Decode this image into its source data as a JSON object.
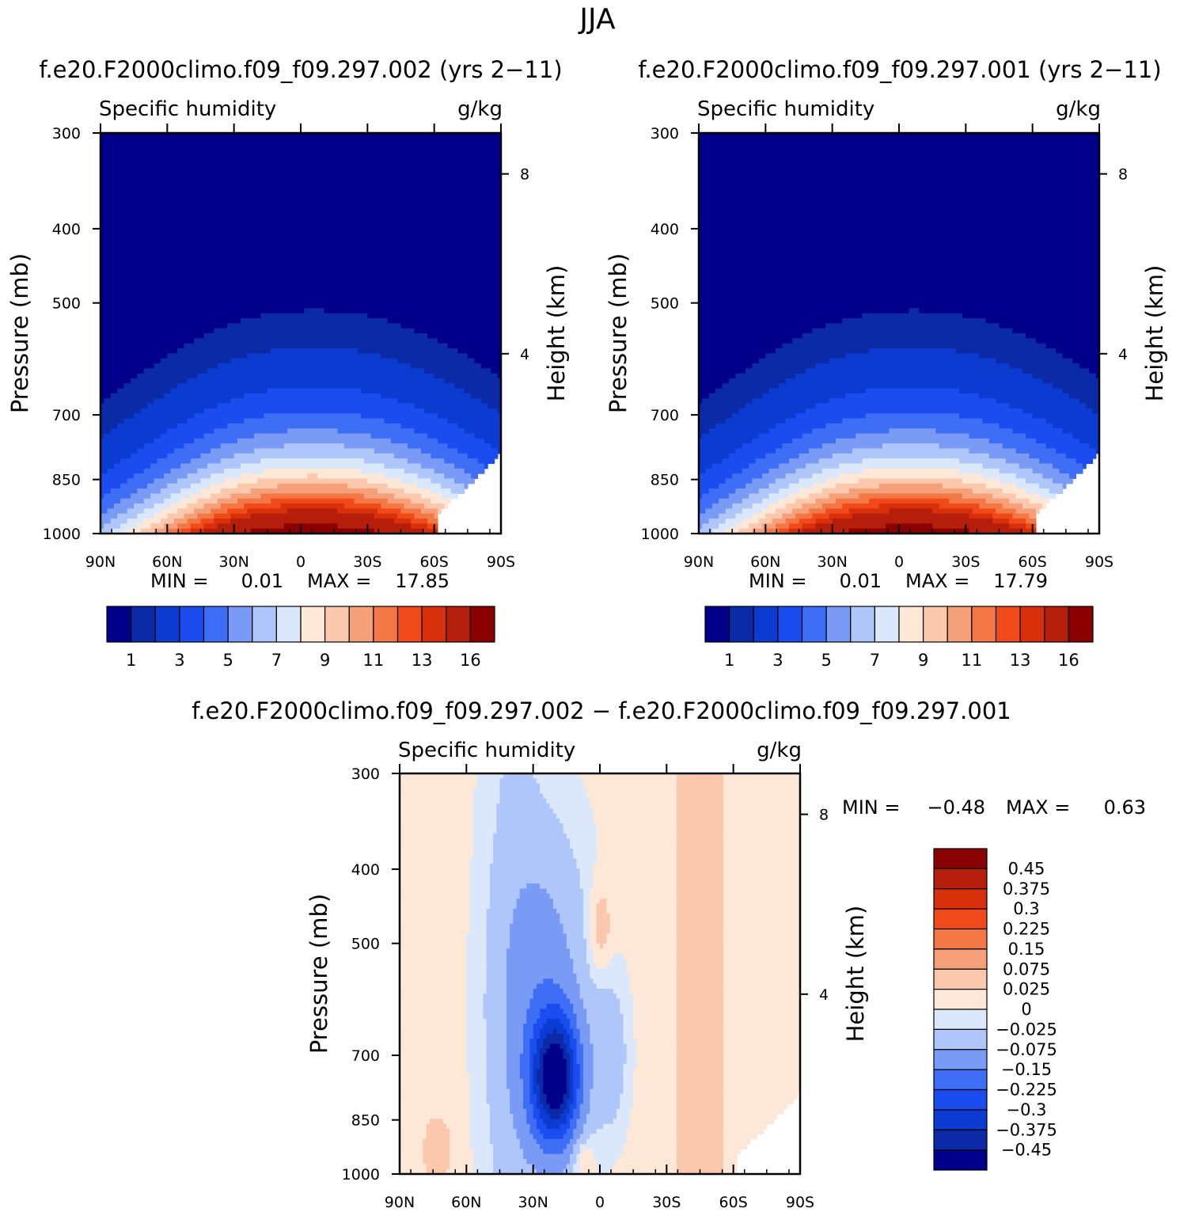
{
  "chart_data": {
    "type": "heatmap",
    "title": "JJA",
    "panels": [
      {
        "id": "p1",
        "case_title": "f.e20.F2000climo.f09_f09.297.002 (yrs 2-11)",
        "variable": "Specific humidity",
        "units": "g/kg",
        "ylabel": "Pressure (mb)",
        "y2label": "Height (km)",
        "xticks": [
          "90N",
          "60N",
          "30N",
          "0",
          "30S",
          "60S",
          "90S"
        ],
        "yticks": [
          "300",
          "400",
          "500",
          "700",
          "850",
          "1000"
        ],
        "y2ticks": [
          "8",
          "4"
        ],
        "min_label": "MIN =",
        "min_value": "0.01",
        "max_label": "MAX =",
        "max_value": "17.85",
        "levels": [
          "1",
          "3",
          "5",
          "7",
          "9",
          "11",
          "13",
          "16"
        ],
        "peak_lat": 8,
        "peak_value": 17.85
      },
      {
        "id": "p2",
        "case_title": "f.e20.F2000climo.f09_f09.297.001 (yrs 2-11)",
        "variable": "Specific humidity",
        "units": "g/kg",
        "ylabel": "Pressure (mb)",
        "y2label": "Height (km)",
        "xticks": [
          "90N",
          "60N",
          "30N",
          "0",
          "30S",
          "60S",
          "90S"
        ],
        "yticks": [
          "300",
          "400",
          "500",
          "700",
          "850",
          "1000"
        ],
        "y2ticks": [
          "8",
          "4"
        ],
        "min_label": "MIN =",
        "min_value": "0.01",
        "max_label": "MAX =",
        "max_value": "17.79",
        "levels": [
          "1",
          "3",
          "5",
          "7",
          "9",
          "11",
          "13",
          "16"
        ],
        "peak_lat": 8,
        "peak_value": 17.79
      },
      {
        "id": "p3",
        "case_title": "f.e20.F2000climo.f09_f09.297.002 - f.e20.F2000climo.f09_f09.297.001",
        "variable": "Specific humidity",
        "units": "g/kg",
        "ylabel": "Pressure (mb)",
        "y2label": "Height (km)",
        "xticks": [
          "90N",
          "60N",
          "30N",
          "0",
          "30S",
          "60S",
          "90S"
        ],
        "yticks": [
          "300",
          "400",
          "500",
          "700",
          "850",
          "1000"
        ],
        "y2ticks": [
          "8",
          "4"
        ],
        "min_label": "MIN =",
        "min_value": "-0.48",
        "max_label": "MAX =",
        "max_value": "0.63",
        "levels": [
          "0.45",
          "0.375",
          "0.3",
          "0.225",
          "0.15",
          "0.075",
          "0.025",
          "0",
          "-0.025",
          "-0.075",
          "-0.15",
          "-0.225",
          "-0.3",
          "-0.375",
          "-0.45"
        ]
      }
    ],
    "colors": {
      "abs_fill": [
        "#00008b",
        "#0a2aa8",
        "#0b3bd0",
        "#1b4cf0",
        "#3d6ef5",
        "#7a9bf5",
        "#aec6fa",
        "#dbe8fb",
        "#fde7d7",
        "#fbc8ad",
        "#f6a07a",
        "#f47845",
        "#f04a1a",
        "#d8300a",
        "#b41e0a",
        "#8b0000"
      ],
      "diff_fill": [
        "#00008b",
        "#0a2aa8",
        "#0b3bd0",
        "#1b4cf0",
        "#3d6ef5",
        "#7a9bf5",
        "#aec6fa",
        "#dbe8fb",
        "#fde7d7",
        "#fbc8ad",
        "#f6a07a",
        "#f47845",
        "#f04a1a",
        "#d8300a",
        "#b41e0a",
        "#8b0000"
      ]
    }
  }
}
